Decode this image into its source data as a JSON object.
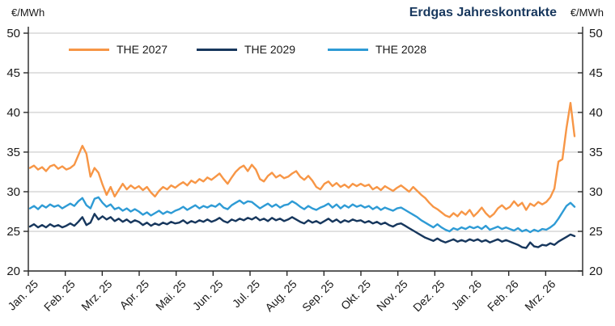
{
  "header": {
    "title": "Erdgas Jahreskontrakte",
    "unit_left": "€/MWh",
    "unit_right": "€/MWh"
  },
  "colors": {
    "the2027": "#F79646",
    "the2029": "#17375D",
    "the2028": "#2E9BD5",
    "grid": "#C3C3C3",
    "axis": "#262626",
    "text": "#1a1a1a",
    "title": "#17375D"
  },
  "chart_data": {
    "type": "line",
    "title": "Erdgas Jahreskontrakte",
    "ylabel": "€/MWh",
    "ylim": [
      20,
      50
    ],
    "ytick_step": 5,
    "grid": true,
    "legend_position": "top",
    "categories": [
      "Jan. 25",
      "Feb. 25",
      "Mrz. 25",
      "Apr. 25",
      "Mai. 25",
      "Jun. 25",
      "Jul. 25",
      "Aug. 25",
      "Sep. 25",
      "Okt. 25",
      "Nov. 25",
      "Dez. 25",
      "Jan. 26",
      "Feb. 26",
      "Mrz. 26"
    ],
    "series": [
      {
        "name": "THE 2027",
        "color": "#F79646",
        "values": [
          33.0,
          33.3,
          32.8,
          33.1,
          32.6,
          33.2,
          33.4,
          32.9,
          33.2,
          32.8,
          33.0,
          33.4,
          34.6,
          35.8,
          34.8,
          31.9,
          33.0,
          32.4,
          30.9,
          29.6,
          30.6,
          29.4,
          30.2,
          31.0,
          30.3,
          30.8,
          30.4,
          30.7,
          30.2,
          30.6,
          29.9,
          29.4,
          30.1,
          30.6,
          30.3,
          30.8,
          30.5,
          30.9,
          31.2,
          30.8,
          31.4,
          31.1,
          31.6,
          31.3,
          31.8,
          31.5,
          31.9,
          32.3,
          31.6,
          31.0,
          31.8,
          32.5,
          33.0,
          33.3,
          32.6,
          33.4,
          32.8,
          31.6,
          31.3,
          32.0,
          32.4,
          31.8,
          32.1,
          31.7,
          31.9,
          32.3,
          32.6,
          31.9,
          31.5,
          32.0,
          31.4,
          30.6,
          30.3,
          31.0,
          31.3,
          30.7,
          31.1,
          30.6,
          30.9,
          30.5,
          31.0,
          30.7,
          31.0,
          30.7,
          30.9,
          30.3,
          30.6,
          30.2,
          30.7,
          30.4,
          30.1,
          30.5,
          30.8,
          30.4,
          30.0,
          30.6,
          30.1,
          29.6,
          29.2,
          28.6,
          28.1,
          27.8,
          27.4,
          27.0,
          26.8,
          27.3,
          26.9,
          27.5,
          27.1,
          27.7,
          26.9,
          27.4,
          28.0,
          27.3,
          26.8,
          27.2,
          27.9,
          28.3,
          27.8,
          28.1,
          28.8,
          28.2,
          28.6,
          27.7,
          28.5,
          28.2,
          28.7,
          28.4,
          28.7,
          29.3,
          30.4,
          33.8,
          34.1,
          38.0,
          41.2,
          37.0
        ]
      },
      {
        "name": "THE 2029",
        "color": "#17375D",
        "values": [
          25.6,
          25.9,
          25.5,
          25.8,
          25.5,
          25.9,
          25.6,
          25.8,
          25.5,
          25.7,
          26.0,
          25.7,
          26.2,
          26.8,
          25.8,
          26.1,
          27.2,
          26.5,
          26.9,
          26.5,
          26.8,
          26.3,
          26.6,
          26.2,
          26.5,
          26.1,
          26.4,
          26.2,
          25.8,
          26.1,
          25.7,
          26.0,
          25.8,
          26.1,
          25.9,
          26.2,
          26.0,
          26.1,
          26.4,
          26.0,
          26.3,
          26.1,
          26.4,
          26.2,
          26.5,
          26.2,
          26.4,
          26.7,
          26.3,
          26.1,
          26.5,
          26.3,
          26.6,
          26.4,
          26.7,
          26.5,
          26.8,
          26.4,
          26.6,
          26.3,
          26.7,
          26.4,
          26.6,
          26.3,
          26.5,
          26.8,
          26.5,
          26.2,
          26.0,
          26.4,
          26.1,
          26.3,
          26.0,
          26.3,
          26.6,
          26.2,
          26.5,
          26.1,
          26.4,
          26.2,
          26.5,
          26.3,
          26.4,
          26.1,
          26.3,
          26.0,
          26.2,
          25.9,
          26.1,
          25.8,
          25.6,
          25.9,
          26.0,
          25.7,
          25.4,
          25.1,
          24.8,
          24.5,
          24.2,
          24.0,
          23.8,
          24.1,
          23.8,
          23.6,
          23.8,
          24.0,
          23.7,
          23.9,
          23.7,
          24.0,
          23.8,
          24.0,
          23.7,
          23.9,
          23.6,
          23.8,
          24.0,
          23.7,
          23.9,
          23.7,
          23.5,
          23.3,
          23.0,
          22.9,
          23.6,
          23.1,
          23.0,
          23.3,
          23.2,
          23.5,
          23.3,
          23.7,
          24.0,
          24.3,
          24.6,
          24.4
        ]
      },
      {
        "name": "THE 2028",
        "color": "#2E9BD5",
        "values": [
          27.9,
          28.2,
          27.8,
          28.3,
          28.0,
          28.4,
          28.1,
          28.3,
          27.9,
          28.2,
          28.5,
          28.2,
          28.8,
          29.2,
          28.3,
          27.9,
          29.1,
          29.3,
          28.6,
          28.1,
          28.4,
          27.8,
          28.0,
          27.6,
          27.9,
          27.5,
          27.8,
          27.5,
          27.1,
          27.4,
          27.0,
          27.3,
          27.6,
          27.2,
          27.5,
          27.3,
          27.6,
          27.8,
          28.1,
          27.7,
          28.0,
          28.3,
          27.9,
          28.2,
          28.0,
          28.3,
          28.1,
          28.5,
          28.0,
          27.8,
          28.3,
          28.6,
          28.9,
          28.5,
          28.8,
          28.7,
          28.3,
          27.9,
          28.2,
          28.5,
          28.1,
          28.4,
          28.0,
          28.3,
          28.4,
          28.8,
          28.5,
          28.1,
          27.8,
          28.2,
          27.9,
          27.7,
          28.0,
          28.2,
          28.5,
          28.0,
          28.4,
          27.9,
          28.3,
          28.0,
          28.4,
          28.1,
          28.3,
          28.0,
          28.2,
          27.8,
          28.1,
          27.7,
          28.0,
          27.8,
          27.6,
          27.9,
          28.0,
          27.7,
          27.4,
          27.1,
          26.8,
          26.4,
          26.1,
          25.8,
          25.5,
          25.9,
          25.5,
          25.2,
          25.0,
          25.4,
          25.2,
          25.5,
          25.3,
          25.6,
          25.4,
          25.6,
          25.3,
          25.7,
          25.2,
          25.4,
          25.6,
          25.3,
          25.5,
          25.3,
          25.1,
          25.4,
          25.0,
          25.2,
          24.9,
          25.2,
          25.0,
          25.3,
          25.2,
          25.5,
          25.9,
          26.6,
          27.4,
          28.2,
          28.6,
          28.1
        ]
      }
    ]
  }
}
